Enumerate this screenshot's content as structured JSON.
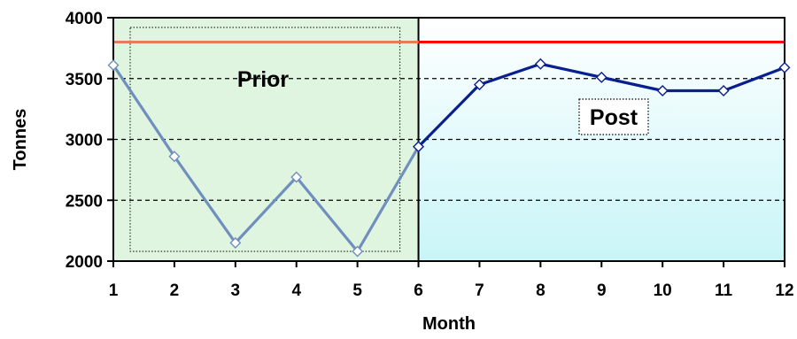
{
  "chart_data": {
    "type": "line",
    "xlabel": "Month",
    "ylabel": "Tonnes",
    "x": [
      1,
      2,
      3,
      4,
      5,
      6,
      7,
      8,
      9,
      10,
      11,
      12
    ],
    "xlim": [
      1,
      12
    ],
    "ylim": [
      2000,
      4000
    ],
    "yticks": [
      2000,
      2500,
      3000,
      3500,
      4000
    ],
    "grid": "horizontal dashed",
    "legend": "none",
    "series": [
      {
        "values": [
          3610,
          2860,
          2150,
          2690,
          2080,
          2940
        ],
        "x": [
          1,
          2,
          3,
          4,
          5,
          6
        ],
        "color": "#6f8fbf"
      },
      {
        "values": [
          2940,
          3450,
          3620,
          3510,
          3400,
          3400,
          3590
        ],
        "x": [
          6,
          7,
          8,
          9,
          10,
          11,
          12
        ],
        "color": "#0a1f8f"
      }
    ],
    "reference_line": {
      "value": 3800,
      "color": "#ff0000"
    },
    "regions": [
      {
        "label": "Prior",
        "from": 1,
        "to": 6,
        "fill": "#dff5df"
      },
      {
        "label": "Post",
        "from": 6,
        "to": 12,
        "fill": "#e8fbfd"
      }
    ]
  }
}
